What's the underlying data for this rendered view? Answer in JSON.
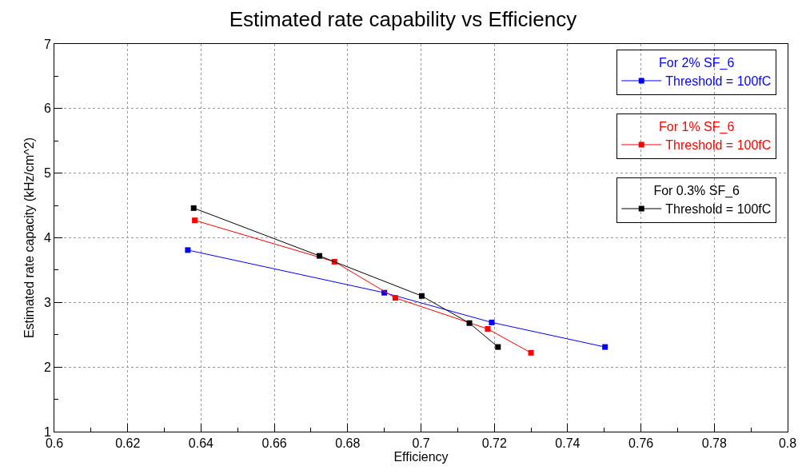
{
  "chart_data": {
    "type": "line",
    "title": "Estimated rate capability vs Efficiency",
    "xlabel": "Efficiency",
    "ylabel": "Estimated rate capacity (kHz/cm^2)",
    "xlim": [
      0.6,
      0.8
    ],
    "xticks": [
      0.6,
      0.62,
      0.64,
      0.66,
      0.68,
      0.7,
      0.72,
      0.74,
      0.76,
      0.78,
      0.8
    ],
    "ylim": [
      1,
      7
    ],
    "yticks": [
      1,
      2,
      3,
      4,
      5,
      6,
      7
    ],
    "grid": true,
    "annotations": [
      "For 2% SF_6",
      "For 1% SF_6",
      "For 0.3% SF_6"
    ],
    "legend": "top right",
    "marker": "square",
    "line_style": "solid",
    "series": [
      {
        "name": "Threshold = 100fC",
        "color": "#0000ff",
        "x": [
          0.6364,
          0.69,
          0.7193,
          0.7502
        ],
        "values": [
          3.81,
          3.15,
          2.69,
          2.31
        ]
      },
      {
        "name": "Threshold = 100fC",
        "color": "#ff0000",
        "x": [
          0.6383,
          0.6764,
          0.693,
          0.7182,
          0.73
        ],
        "values": [
          4.27,
          3.63,
          3.07,
          2.59,
          2.22
        ]
      },
      {
        "name": "Threshold = 100fC",
        "color": "#000000",
        "x": [
          0.638,
          0.6723,
          0.7002,
          0.7132,
          0.721
        ],
        "values": [
          4.46,
          3.72,
          3.1,
          2.68,
          2.31
        ]
      }
    ]
  }
}
